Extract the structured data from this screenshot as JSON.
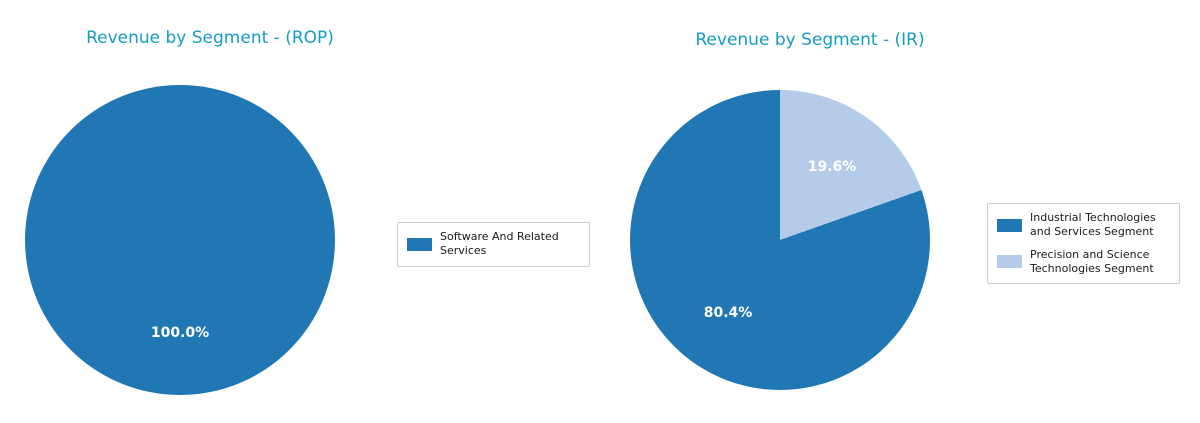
{
  "style": {
    "background": "#ffffff",
    "title_color": "#149cc8",
    "pct_label_color": "#ffffff",
    "legend_border_color": "#cccccc",
    "primary_blue": "#2077b4",
    "light_blue": "#b4cbe9"
  },
  "chart_data": [
    {
      "type": "pie",
      "title": "Revenue by Segment - (ROP)",
      "labels": [
        "Software And Related Services"
      ],
      "values": [
        100.0
      ],
      "pct_labels": [
        "100.0%"
      ],
      "colors": [
        "#2077b4"
      ],
      "start_angle": 90,
      "counterclockwise": true,
      "legend_position": "center right"
    },
    {
      "type": "pie",
      "title": "Revenue by Segment - (IR)",
      "labels": [
        "Industrial Technologies and Services Segment",
        "Precision and Science Technologies Segment"
      ],
      "values": [
        80.4,
        19.6
      ],
      "pct_labels": [
        "80.4%",
        "19.6%"
      ],
      "colors": [
        "#2077b4",
        "#b4cbe9"
      ],
      "start_angle": 90,
      "counterclockwise": true,
      "legend_position": "center right"
    }
  ]
}
